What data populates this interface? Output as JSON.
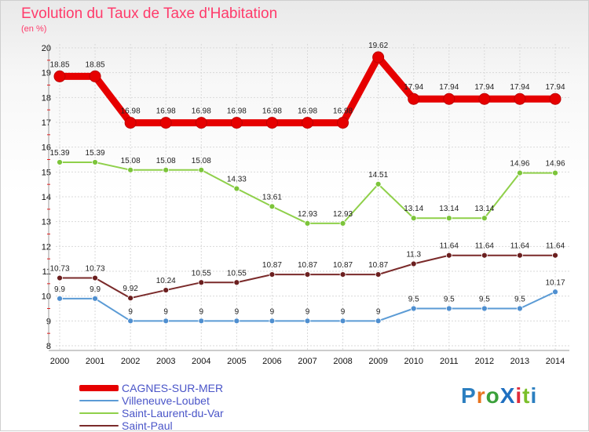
{
  "title": "Evolution du Taux de Taxe d'Habitation",
  "subtitle": "(en %)",
  "logo": {
    "text": "ProXiti",
    "colors": [
      "#2c7fc0",
      "#e8731e",
      "#3aa03a",
      "#1f6fc0",
      "#e02b3b",
      "#7bbf2a",
      "#2c7fc0"
    ]
  },
  "chart_data": {
    "type": "line",
    "title": "Evolution du Taux de Taxe d'Habitation",
    "ylabel": "(en %)",
    "xlabel": "",
    "ylim": [
      8,
      20
    ],
    "yticks": [
      8,
      9,
      10,
      11,
      12,
      13,
      14,
      15,
      16,
      17,
      18,
      19,
      20
    ],
    "grid": true,
    "legend_position": "bottom-left",
    "x": [
      "2000",
      "2001",
      "2002",
      "2003",
      "2004",
      "2005",
      "2006",
      "2007",
      "2008",
      "2009",
      "2010",
      "2011",
      "2012",
      "2013",
      "2014"
    ],
    "series": [
      {
        "name": "CAGNES-SUR-MER",
        "color": "#e60000",
        "width": 9,
        "marker_radius": 7,
        "values": [
          18.85,
          18.85,
          16.98,
          16.98,
          16.98,
          16.98,
          16.98,
          16.98,
          16.98,
          19.62,
          17.94,
          17.94,
          17.94,
          17.94,
          17.94
        ],
        "labels": [
          "18.85",
          "18.85",
          "16.98",
          "16.98",
          "16.98",
          "16.98",
          "16.98",
          "16.98",
          "16.98",
          "19.62",
          "17.94",
          "17.94",
          "17.94",
          "17.94",
          "17.94"
        ]
      },
      {
        "name": "Villeneuve-Loubet",
        "color": "#5b9bd5",
        "marker_fill": "#4f8fd0",
        "width": 2,
        "marker_radius": 3.5,
        "values": [
          9.9,
          9.9,
          9,
          9,
          9,
          9,
          9,
          9,
          9,
          9,
          9.5,
          9.5,
          9.5,
          9.5,
          10.17
        ],
        "labels": [
          "9.9",
          "9.9",
          "9",
          "9",
          "9",
          "9",
          "9",
          "9",
          "9",
          "9",
          "9.5",
          "9.5",
          "9.5",
          "9.5",
          "10.17"
        ]
      },
      {
        "name": "Saint-Laurent-du-Var",
        "color": "#8fd04a",
        "marker_fill": "#7cc43a",
        "width": 2,
        "marker_radius": 3.5,
        "values": [
          15.39,
          15.39,
          15.08,
          15.08,
          15.08,
          14.33,
          13.61,
          12.93,
          12.93,
          14.51,
          13.14,
          13.14,
          13.14,
          14.96,
          14.96
        ],
        "labels": [
          "15.39",
          "15.39",
          "15.08",
          "15.08",
          "15.08",
          "14.33",
          "13.61",
          "12.93",
          "12.93",
          "14.51",
          "13.14",
          "13.14",
          "13.14",
          "14.96",
          "14.96"
        ]
      },
      {
        "name": "Saint-Paul",
        "color": "#7a2a2a",
        "marker_fill": "#6b1f1f",
        "width": 2,
        "marker_radius": 3.5,
        "values": [
          10.73,
          10.73,
          9.92,
          10.24,
          10.55,
          10.55,
          10.87,
          10.87,
          10.87,
          10.87,
          11.3,
          11.64,
          11.64,
          11.64,
          11.64
        ],
        "labels": [
          "10.73",
          "10.73",
          "9.92",
          "10.24",
          "10.55",
          "10.55",
          "10.87",
          "10.87",
          "10.87",
          "10.87",
          "11.3",
          "11.64",
          "11.64",
          "11.64",
          "11.64"
        ]
      }
    ]
  }
}
